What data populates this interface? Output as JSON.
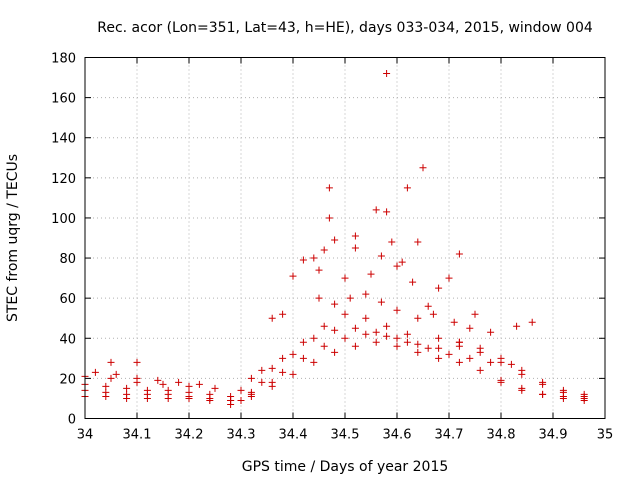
{
  "chart_data": {
    "type": "scatter",
    "title": "Rec. acor (Lon=351, Lat=43, h=HE), days 033-034, 2015, window 004",
    "xlabel": "GPS time / Days of year 2015",
    "ylabel": "STEC from uqrg / TECUs",
    "xlim": [
      34,
      35
    ],
    "ylim": [
      0,
      180
    ],
    "xticks": [
      34,
      34.1,
      34.2,
      34.3,
      34.4,
      34.5,
      34.6,
      34.7,
      34.8,
      34.9,
      35
    ],
    "xtick_labels": [
      "34",
      "34.1",
      "34.2",
      "34.3",
      "34.4",
      "34.5",
      "34.6",
      "34.7",
      "34.8",
      "34.9",
      "35"
    ],
    "yticks": [
      0,
      20,
      40,
      60,
      80,
      100,
      120,
      140,
      160,
      180
    ],
    "ytick_labels": [
      "0",
      "20",
      "40",
      "60",
      "80",
      "100",
      "120",
      "140",
      "160",
      "180"
    ],
    "grid": true,
    "marker": "+",
    "color": "#cc0000",
    "series_description": "Many overlapping satellite arcs; baseline ~10-20 TECU at night rising to ~30-45 TECU near 34.5, with scattered outliers up to ~172 TECU.",
    "arcs": [
      {
        "x": [
          34.0,
          34.04,
          34.08,
          34.12,
          34.16,
          34.2,
          34.24,
          34.28,
          34.3
        ],
        "y": [
          11,
          11,
          10,
          10,
          10,
          10,
          9,
          7,
          9
        ]
      },
      {
        "x": [
          34.0,
          34.04,
          34.08,
          34.12,
          34.16,
          34.2,
          34.24,
          34.28,
          34.32
        ],
        "y": [
          14,
          13,
          12,
          12,
          12,
          11,
          10,
          9,
          11
        ]
      },
      {
        "x": [
          34.0,
          34.04,
          34.08,
          34.12,
          34.16,
          34.2,
          34.24,
          34.28,
          34.32,
          34.36
        ],
        "y": [
          17,
          16,
          15,
          14,
          14,
          13,
          12,
          11,
          13,
          18
        ]
      },
      {
        "x": [
          34.0,
          34.05,
          34.1,
          34.15,
          34.2,
          34.25
        ],
        "y": [
          21,
          20,
          18,
          17,
          16,
          15
        ]
      },
      {
        "x": [
          34.02,
          34.06,
          34.1,
          34.14,
          34.18,
          34.22
        ],
        "y": [
          23,
          22,
          20,
          19,
          18,
          17
        ]
      },
      {
        "x": [
          34.28,
          34.32,
          34.36,
          34.4,
          34.44,
          34.48,
          34.52,
          34.56,
          34.6,
          34.64,
          34.68,
          34.72,
          34.76,
          34.8,
          34.84,
          34.88,
          34.92,
          34.96
        ],
        "y": [
          9,
          12,
          16,
          22,
          28,
          33,
          36,
          38,
          36,
          33,
          30,
          28,
          24,
          19,
          15,
          12,
          10,
          9
        ]
      },
      {
        "x": [
          34.3,
          34.34,
          34.38,
          34.42,
          34.46,
          34.5,
          34.54,
          34.58,
          34.62,
          34.66,
          34.7,
          34.74,
          34.78,
          34.82
        ],
        "y": [
          14,
          18,
          23,
          30,
          36,
          40,
          42,
          41,
          38,
          35,
          32,
          30,
          28,
          27
        ]
      },
      {
        "x": [
          34.32,
          34.36,
          34.4,
          34.44,
          34.48,
          34.52,
          34.56,
          34.6,
          34.64,
          34.68,
          34.72
        ],
        "y": [
          20,
          25,
          32,
          40,
          44,
          45,
          43,
          40,
          37,
          35,
          38
        ]
      },
      {
        "x": [
          34.34,
          34.38,
          34.42,
          34.46,
          34.5,
          34.54,
          34.58,
          34.62
        ],
        "y": [
          24,
          30,
          38,
          46,
          52,
          50,
          46,
          42
        ]
      },
      {
        "x": [
          34.68,
          34.72,
          34.76,
          34.8,
          34.84,
          34.88,
          34.92,
          34.96
        ],
        "y": [
          40,
          38,
          35,
          30,
          24,
          18,
          14,
          12
        ]
      },
      {
        "x": [
          34.72,
          34.76,
          34.8,
          34.84,
          34.88,
          34.92,
          34.96
        ],
        "y": [
          36,
          33,
          28,
          22,
          17,
          13,
          11
        ]
      },
      {
        "x": [
          34.8,
          34.84,
          34.88,
          34.92,
          34.96
        ],
        "y": [
          18,
          14,
          12,
          11,
          10
        ]
      }
    ],
    "outliers": {
      "x": [
        34.05,
        34.1,
        34.36,
        34.38,
        34.4,
        34.42,
        34.44,
        34.45,
        34.46,
        34.47,
        34.47,
        34.48,
        34.5,
        34.52,
        34.52,
        34.55,
        34.56,
        34.57,
        34.58,
        34.58,
        34.59,
        34.6,
        34.61,
        34.62,
        34.63,
        34.64,
        34.65,
        34.66,
        34.68,
        34.7,
        34.72,
        34.75,
        34.78,
        34.83,
        34.86,
        34.45,
        34.48,
        34.51,
        34.54,
        34.57,
        34.6,
        34.64,
        34.67,
        34.71,
        34.74
      ],
      "y": [
        28,
        28,
        50,
        52,
        71,
        79,
        80,
        74,
        84,
        115,
        100,
        89,
        70,
        91,
        85,
        72,
        104,
        81,
        172,
        103,
        88,
        76,
        78,
        115,
        68,
        88,
        125,
        56,
        65,
        70,
        82,
        52,
        43,
        46,
        48,
        60,
        57,
        60,
        62,
        58,
        54,
        50,
        52,
        48,
        45
      ]
    }
  }
}
